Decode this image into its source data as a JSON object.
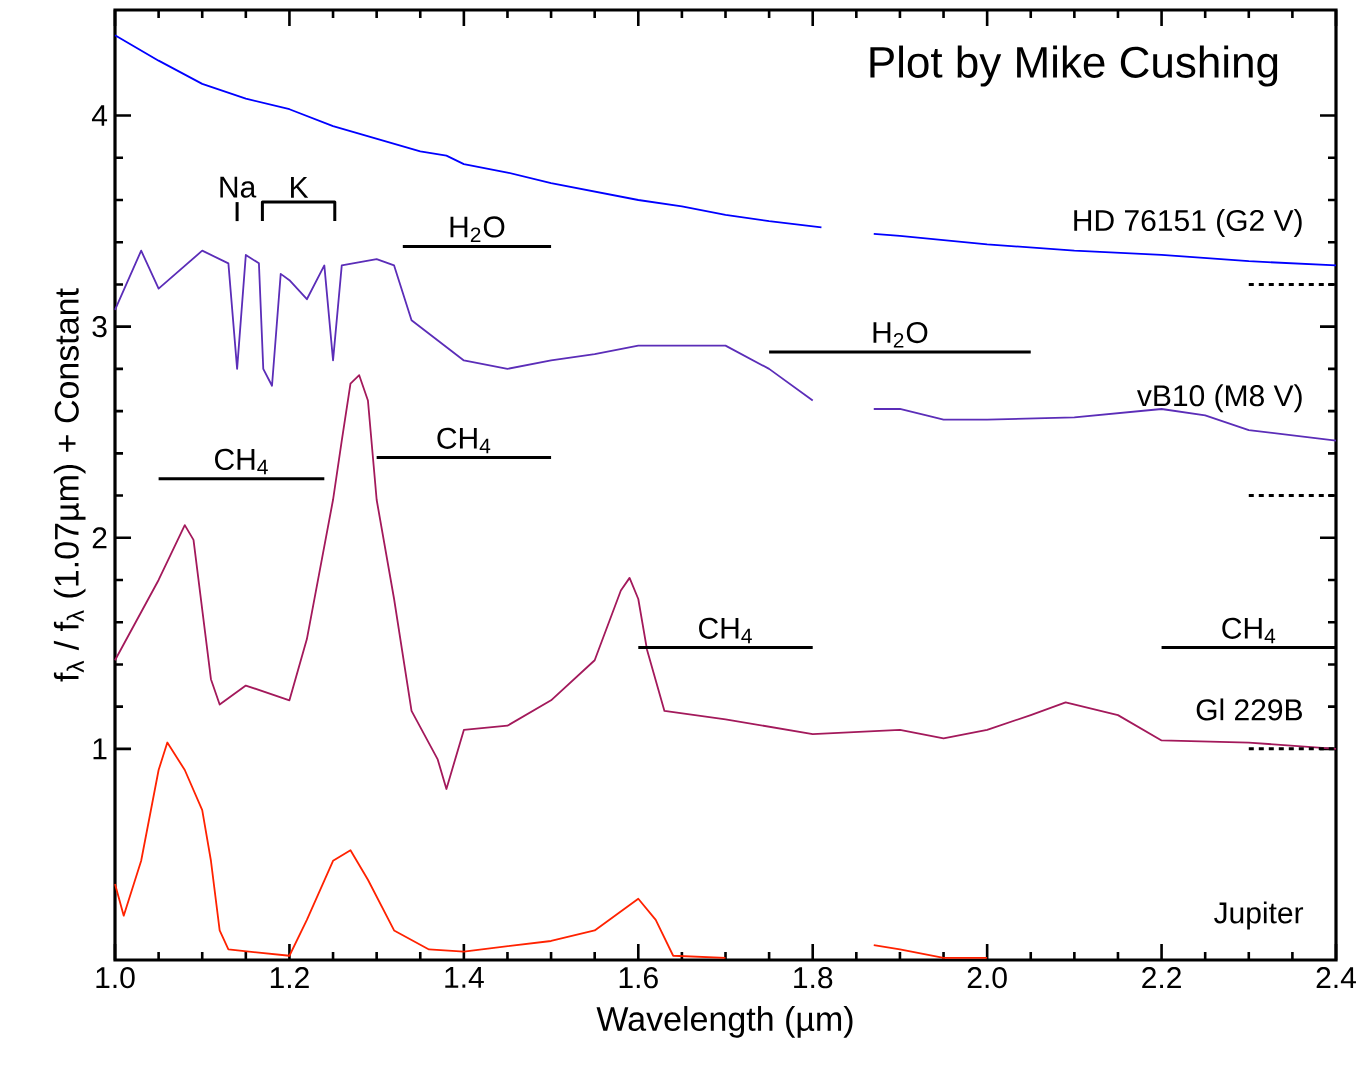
{
  "chart_data": {
    "type": "line",
    "xlabel": "Wavelength (µm)",
    "ylabel": "f$_{λ}$ / f$_{λ}$ (1.07µm) + Constant",
    "xlim": [
      1.0,
      2.4
    ],
    "ylim": [
      0,
      4.5
    ],
    "xticks": [
      {
        "value": 1.0,
        "label": "1.0"
      },
      {
        "value": 1.2,
        "label": "1.2"
      },
      {
        "value": 1.4,
        "label": "1.4"
      },
      {
        "value": 1.6,
        "label": "1.6"
      },
      {
        "value": 1.8,
        "label": "1.8"
      },
      {
        "value": 2.0,
        "label": "2.0"
      },
      {
        "value": 2.2,
        "label": "2.2"
      },
      {
        "value": 2.4,
        "label": "2.4"
      }
    ],
    "yticks": [
      1,
      2,
      3,
      4
    ],
    "series": [
      {
        "color": "#0000ff",
        "x": [
          1.0,
          1.05,
          1.1,
          1.15,
          1.2,
          1.25,
          1.3,
          1.35,
          1.38,
          1.4,
          1.45,
          1.5,
          1.55,
          1.6,
          1.65,
          1.7,
          1.75,
          1.81,
          1.84,
          1.87,
          1.9,
          2.0,
          2.1,
          2.2,
          2.3,
          2.4
        ],
        "values": [
          4.38,
          4.26,
          4.15,
          4.08,
          4.03,
          3.95,
          3.89,
          3.83,
          3.81,
          3.77,
          3.73,
          3.68,
          3.64,
          3.6,
          3.57,
          3.53,
          3.5,
          3.47,
          null,
          3.44,
          3.43,
          3.39,
          3.36,
          3.34,
          3.31,
          3.29
        ]
      },
      {
        "color": "#5b2db8",
        "x": [
          1.0,
          1.03,
          1.05,
          1.1,
          1.13,
          1.14,
          1.15,
          1.165,
          1.17,
          1.18,
          1.19,
          1.2,
          1.22,
          1.24,
          1.25,
          1.26,
          1.3,
          1.32,
          1.34,
          1.4,
          1.45,
          1.5,
          1.55,
          1.6,
          1.65,
          1.7,
          1.75,
          1.8,
          1.84,
          1.87,
          1.9,
          1.95,
          2.0,
          2.1,
          2.2,
          2.25,
          2.3,
          2.4
        ],
        "values": [
          3.08,
          3.36,
          3.18,
          3.36,
          3.3,
          2.8,
          3.34,
          3.3,
          2.8,
          2.72,
          3.25,
          3.22,
          3.13,
          3.29,
          2.84,
          3.29,
          3.32,
          3.29,
          3.03,
          2.84,
          2.8,
          2.84,
          2.87,
          2.91,
          2.91,
          2.91,
          2.8,
          2.65,
          null,
          2.61,
          2.61,
          2.56,
          2.56,
          2.57,
          2.61,
          2.58,
          2.51,
          2.46
        ]
      },
      {
        "color": "#a3195b",
        "x": [
          1.0,
          1.05,
          1.08,
          1.09,
          1.11,
          1.12,
          1.15,
          1.2,
          1.22,
          1.25,
          1.26,
          1.27,
          1.28,
          1.29,
          1.3,
          1.32,
          1.34,
          1.37,
          1.38,
          1.4,
          1.45,
          1.5,
          1.55,
          1.58,
          1.59,
          1.6,
          1.61,
          1.63,
          1.7,
          1.8,
          1.9,
          1.95,
          2.0,
          2.05,
          2.09,
          2.15,
          2.2,
          2.3,
          2.4
        ],
        "values": [
          1.42,
          1.8,
          2.06,
          1.99,
          1.33,
          1.21,
          1.3,
          1.23,
          1.52,
          2.18,
          2.46,
          2.73,
          2.77,
          2.65,
          2.18,
          1.71,
          1.18,
          0.95,
          0.81,
          1.09,
          1.11,
          1.23,
          1.42,
          1.75,
          1.81,
          1.71,
          1.47,
          1.18,
          1.14,
          1.07,
          1.09,
          1.05,
          1.09,
          1.16,
          1.22,
          1.16,
          1.04,
          1.03,
          1.0
        ]
      },
      {
        "color": "#ff2200",
        "x": [
          1.0,
          1.01,
          1.03,
          1.05,
          1.06,
          1.08,
          1.1,
          1.11,
          1.12,
          1.13,
          1.2,
          1.22,
          1.25,
          1.27,
          1.29,
          1.32,
          1.36,
          1.4,
          1.5,
          1.55,
          1.6,
          1.62,
          1.64,
          1.7,
          1.78,
          1.87,
          1.9,
          1.95,
          2.0
        ],
        "values": [
          0.36,
          0.21,
          0.47,
          0.9,
          1.03,
          0.9,
          0.71,
          0.47,
          0.14,
          0.05,
          0.02,
          0.19,
          0.47,
          0.52,
          0.38,
          0.14,
          0.05,
          0.04,
          0.09,
          0.14,
          0.29,
          0.19,
          0.02,
          0.01,
          null,
          0.07,
          0.05,
          0.01,
          0.01
        ]
      },
      {
        "name": "Na",
        "color": "#000000",
        "x": [
          1.14,
          1.14
        ],
        "values": [
          3.5,
          3.59
        ]
      },
      {
        "name": "K",
        "color": "#000000",
        "x": [
          1.169,
          1.169,
          1.252,
          1.252
        ],
        "values": [
          3.5,
          3.59,
          3.59,
          3.5
        ]
      },
      {
        "name": "H$_{2}$O",
        "color": "#000000",
        "x": [
          1.33,
          1.5
        ],
        "values": [
          3.38,
          3.38
        ]
      },
      {
        "name": "H$_{2}$O",
        "color": "#000000",
        "x": [
          1.75,
          2.05
        ],
        "values": [
          2.88,
          2.88
        ]
      },
      {
        "name": "CH$_{4}$",
        "color": "#000000",
        "x": [
          1.05,
          1.24
        ],
        "values": [
          2.28,
          2.28
        ]
      },
      {
        "name": "CH$_{4}$",
        "color": "#000000",
        "x": [
          1.3,
          1.5
        ],
        "values": [
          2.38,
          2.38
        ]
      },
      {
        "name": "CH$_{4}$",
        "color": "#000000",
        "x": [
          1.6,
          1.8
        ],
        "values": [
          1.48,
          1.48
        ]
      },
      {
        "name": "CH$_{4}$",
        "color": "#000000",
        "x": [
          2.2,
          2.4
        ],
        "values": [
          1.48,
          1.48
        ]
      },
      {
        "color": "#000000",
        "line_style": "dotted",
        "x": [
          2.3,
          2.4
        ],
        "values": [
          3.2,
          3.2
        ]
      },
      {
        "color": "#000000",
        "line_style": "dotted",
        "x": [
          2.3,
          2.4
        ],
        "values": [
          2.2,
          2.2
        ]
      },
      {
        "color": "#000000",
        "line_style": "dotted",
        "x": [
          2.3,
          2.4
        ],
        "values": [
          1.0,
          1.0
        ]
      }
    ],
    "annotations": [
      "Plot by Mike Cushing",
      "HD 76151 (G2 V)",
      "vB10 (M8 V)",
      "Gl 229B",
      "Jupiter"
    ]
  }
}
